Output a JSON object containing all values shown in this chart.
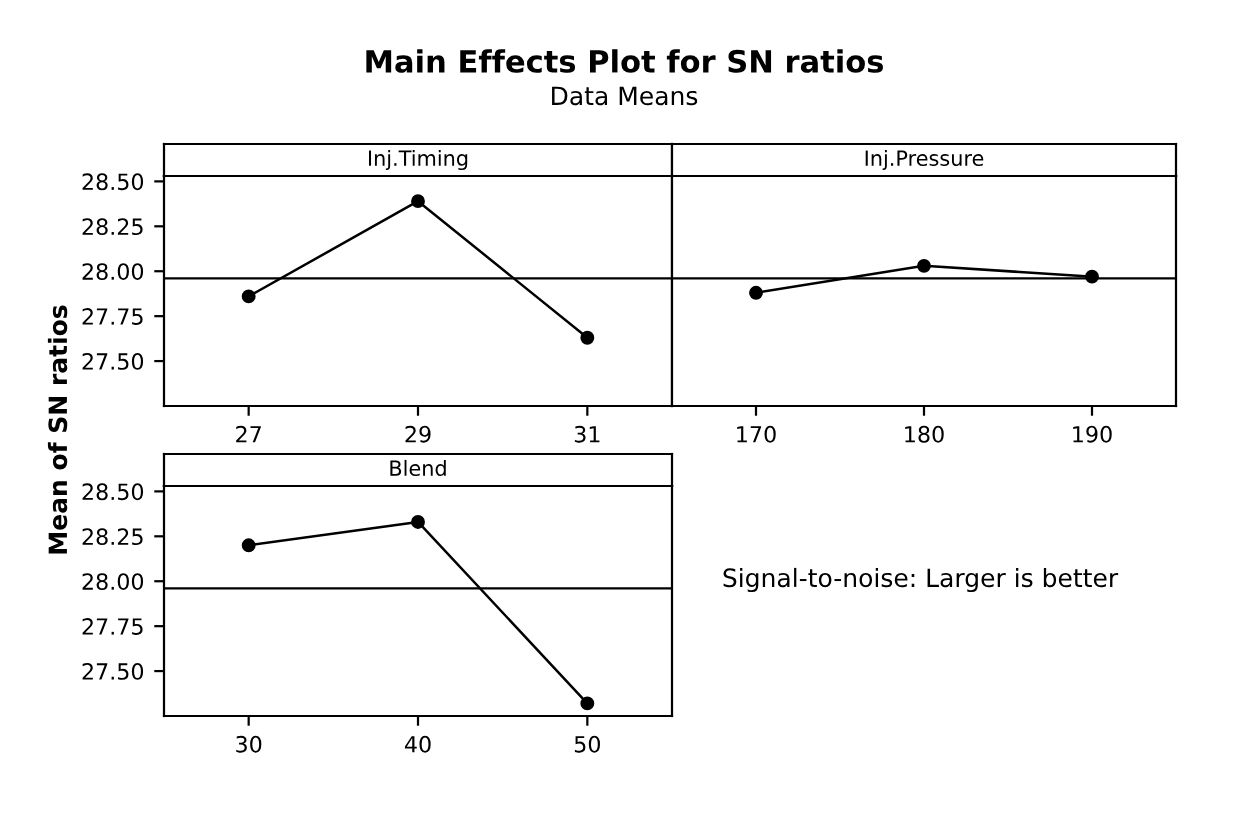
{
  "chart_data": [
    {
      "type": "other",
      "title": "Main Effects Plot for SN ratios",
      "subtitle": "Data Means",
      "ylabel": "Mean of SN ratios",
      "annotations": [
        "Signal-to-noise: Larger is better"
      ]
    },
    {
      "type": "line",
      "title": "Inj.Timing",
      "x": [
        27,
        29,
        31
      ],
      "values": [
        27.86,
        28.39,
        27.63
      ],
      "color": "#000000",
      "marker": "circle",
      "xlim": [
        26,
        32
      ],
      "xticks": [
        27,
        29,
        31
      ],
      "ylim": [
        27.25,
        28.53
      ],
      "yticks": [
        {
          "value": 27.5,
          "label": "27.50"
        },
        {
          "value": 27.75,
          "label": "27.75"
        },
        {
          "value": 28.0,
          "label": "28.00"
        },
        {
          "value": 28.25,
          "label": "28.25"
        },
        {
          "value": 28.5,
          "label": "28.50"
        }
      ],
      "ref_lines": [
        {
          "axis": "y",
          "value": 27.96,
          "color": "#000000"
        }
      ],
      "grid": false
    },
    {
      "type": "line",
      "title": "Inj.Pressure",
      "x": [
        170,
        180,
        190
      ],
      "values": [
        27.88,
        28.03,
        27.97
      ],
      "color": "#000000",
      "marker": "circle",
      "xlim": [
        165,
        195
      ],
      "xticks": [
        170,
        180,
        190
      ],
      "ylim": [
        27.25,
        28.53
      ],
      "tick_labels": "x",
      "ref_lines": [
        {
          "axis": "y",
          "value": 27.96,
          "color": "#000000"
        }
      ],
      "grid": false
    },
    {
      "type": "line",
      "title": "Blend",
      "x": [
        30,
        40,
        50
      ],
      "values": [
        28.2,
        28.33,
        27.32
      ],
      "color": "#000000",
      "marker": "circle",
      "xlim": [
        25,
        55
      ],
      "xticks": [
        30,
        40,
        50
      ],
      "ylim": [
        27.25,
        28.53
      ],
      "yticks": [
        {
          "value": 27.5,
          "label": "27.50"
        },
        {
          "value": 27.75,
          "label": "27.75"
        },
        {
          "value": 28.0,
          "label": "28.00"
        },
        {
          "value": 28.25,
          "label": "28.25"
        },
        {
          "value": 28.5,
          "label": "28.50"
        }
      ],
      "ref_lines": [
        {
          "axis": "y",
          "value": 27.96,
          "color": "#000000"
        }
      ],
      "grid": false
    }
  ]
}
